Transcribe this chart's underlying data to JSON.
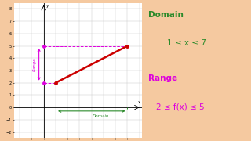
{
  "background_color": "#f5c9a0",
  "graph_bg": "#ffffff",
  "xlim": [
    -2.5,
    8.2
  ],
  "ylim": [
    -2.5,
    8.5
  ],
  "xticks": [
    -2,
    -1,
    0,
    1,
    2,
    3,
    4,
    5,
    6,
    7,
    8
  ],
  "yticks": [
    -2,
    -1,
    0,
    1,
    2,
    3,
    4,
    5,
    6,
    7,
    8
  ],
  "line_x": [
    1,
    7
  ],
  "line_y": [
    2,
    5
  ],
  "line_color": "#cc0000",
  "line_width": 1.8,
  "dot_color": "#cc0000",
  "domain_arrow_color": "#2a8a2a",
  "domain_label": "Domain",
  "domain_label_color": "#2a8a2a",
  "range_arrow_color": "#dd00dd",
  "range_label": "Range",
  "range_label_color": "#dd00dd",
  "dashed_color": "#dd00dd",
  "text_domain_title": "Domain",
  "text_domain_expr": "1 ≤ x ≤ 7",
  "text_range_title": "Range",
  "text_range_expr": "2 ≤ f(x) ≤ 5",
  "text_color_green": "#2a8a2a",
  "text_color_pink": "#dd00dd",
  "xlabel": "x",
  "ylabel": "y"
}
